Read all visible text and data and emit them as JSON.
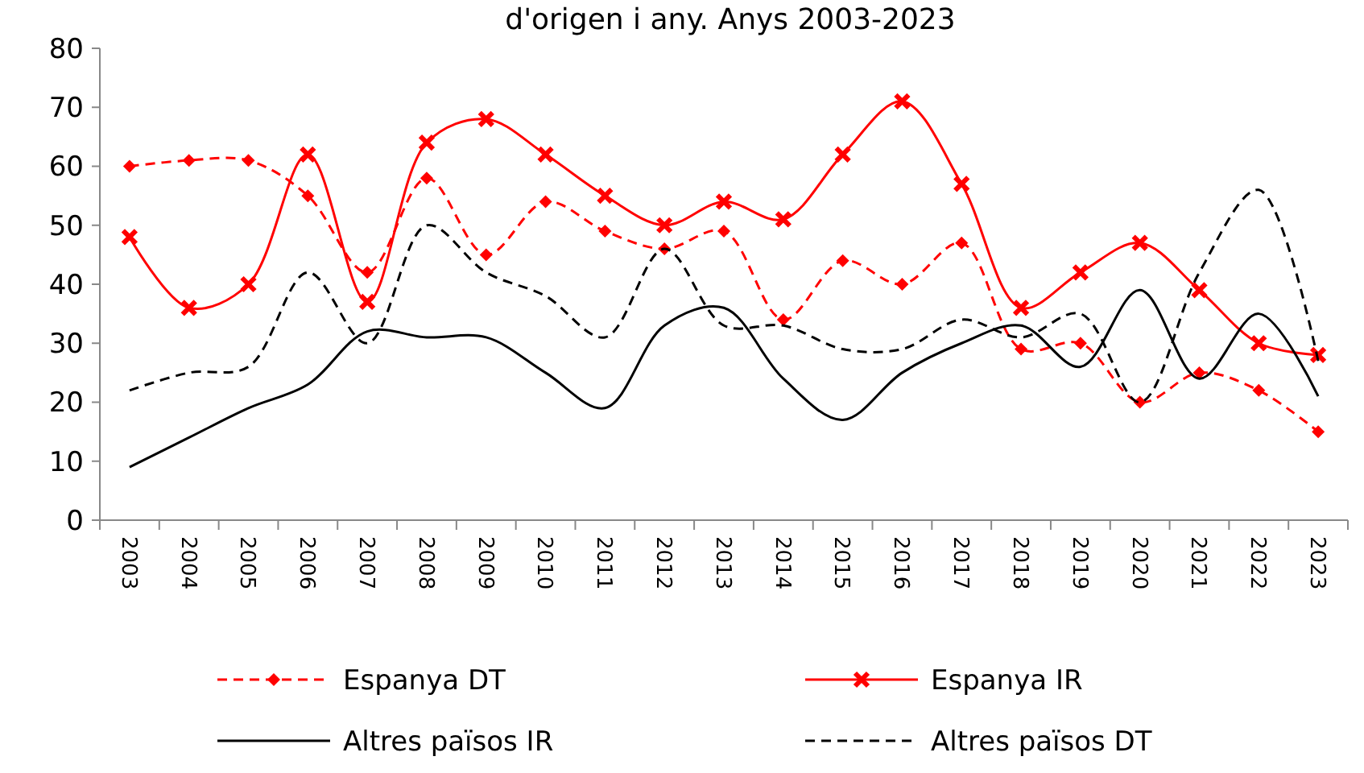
{
  "chart_data": {
    "type": "line",
    "title": "d'origen i any. Anys 2003-2023",
    "categories": [
      "2003",
      "2004",
      "2005",
      "2006",
      "2007",
      "2008",
      "2009",
      "2010",
      "2011",
      "2012",
      "2013",
      "2014",
      "2015",
      "2016",
      "2017",
      "2018",
      "2019",
      "2020",
      "2021",
      "2022",
      "2023"
    ],
    "ylim": [
      0,
      80
    ],
    "yticks": [
      0,
      10,
      20,
      30,
      40,
      50,
      60,
      70,
      80
    ],
    "grid": false,
    "legend": "bottom",
    "series": [
      {
        "name": "Espanya DT",
        "color": "#ff0000",
        "line_style": "dashed",
        "marker": "diamond",
        "values": [
          60,
          61,
          61,
          55,
          42,
          58,
          45,
          54,
          49,
          46,
          49,
          34,
          44,
          40,
          47,
          29,
          30,
          20,
          25,
          22,
          15
        ]
      },
      {
        "name": "Espanya IR",
        "color": "#ff0000",
        "line_style": "solid",
        "marker": "cross",
        "values": [
          48,
          36,
          40,
          62,
          37,
          64,
          68,
          62,
          55,
          50,
          54,
          51,
          62,
          71,
          57,
          36,
          42,
          47,
          39,
          30,
          28
        ]
      },
      {
        "name": "Altres països IR",
        "color": "#000000",
        "line_style": "solid",
        "marker": "none",
        "values": [
          9,
          14,
          19,
          23,
          32,
          31,
          31,
          25,
          19,
          33,
          36,
          24,
          17,
          25,
          30,
          33,
          26,
          39,
          24,
          35,
          21
        ]
      },
      {
        "name": "Altres països DT",
        "color": "#000000",
        "line_style": "dashed",
        "marker": "none",
        "values": [
          22,
          25,
          26,
          42,
          30,
          50,
          42,
          38,
          31,
          46,
          33,
          33,
          29,
          29,
          34,
          31,
          35,
          20,
          42,
          56,
          27
        ]
      }
    ]
  }
}
